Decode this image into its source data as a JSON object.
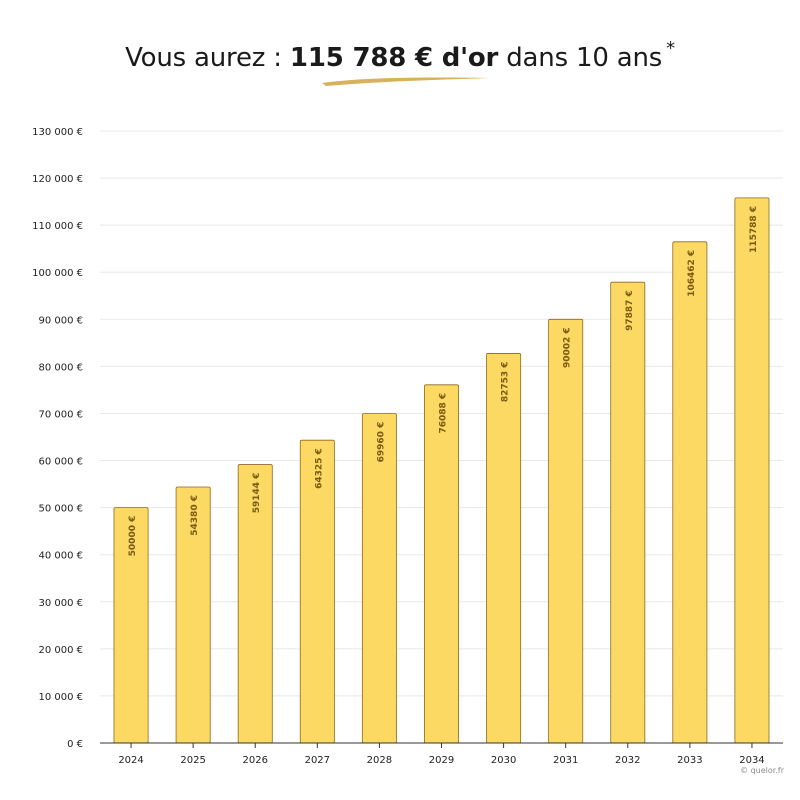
{
  "title": {
    "prefix": "Vous aurez :",
    "highlight": "115 788 € d'or",
    "suffix": "dans 10 ans",
    "asterisk": "*"
  },
  "credit": "© quelor.fr",
  "colors": {
    "bar_fill": "#FBD962",
    "bar_stroke": "#8C6A1F",
    "bar_label": "#7A5A16",
    "swash": "#D8B25A",
    "grid": "#E8E8E8",
    "axis": "#333333",
    "tick_text": "#222222"
  },
  "chart_data": {
    "type": "bar",
    "title": "Vous aurez : 115 788 € d'or dans 10 ans *",
    "xlabel": "",
    "ylabel": "",
    "categories": [
      "2024",
      "2025",
      "2026",
      "2027",
      "2028",
      "2029",
      "2030",
      "2031",
      "2032",
      "2033",
      "2034"
    ],
    "values": [
      50000,
      54380,
      59144,
      64325,
      69960,
      76088,
      82753,
      90002,
      97887,
      106462,
      115788
    ],
    "data_labels": [
      "50000 €",
      "54380 €",
      "59144 €",
      "64325 €",
      "69960 €",
      "76088 €",
      "82753 €",
      "90002 €",
      "97887 €",
      "106462 €",
      "115788 €"
    ],
    "ylim": [
      0,
      130000
    ],
    "y_ticks": [
      0,
      10000,
      20000,
      30000,
      40000,
      50000,
      60000,
      70000,
      80000,
      90000,
      100000,
      110000,
      120000,
      130000
    ],
    "y_tick_labels": [
      "0 €",
      "10 000 €",
      "20 000 €",
      "30 000 €",
      "40 000 €",
      "50 000 €",
      "60 000 €",
      "70 000 €",
      "80 000 €",
      "90 000 €",
      "100 000 €",
      "110 000 €",
      "120 000 €",
      "130 000 €"
    ],
    "grid": true,
    "legend": "none"
  }
}
